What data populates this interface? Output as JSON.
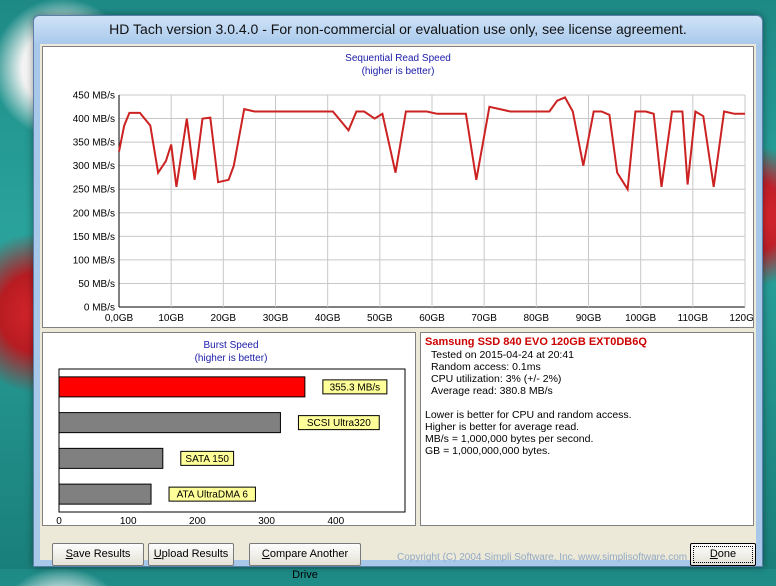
{
  "window": {
    "title": "HD Tach version 3.0.4.0  - For non-commercial or evaluation use only, see license agreement."
  },
  "sequential": {
    "title": "Sequential Read Speed",
    "subtitle": "(higher is better)"
  },
  "burst": {
    "title": "Burst Speed",
    "subtitle": "(higher is better)"
  },
  "chart_data": [
    {
      "type": "line",
      "title": "Sequential Read Speed",
      "subtitle": "(higher is better)",
      "xlabel": "",
      "ylabel": "",
      "x_unit": "GB",
      "y_unit": "MB/s",
      "x_ticks": [
        "0,0GB",
        "10GB",
        "20GB",
        "30GB",
        "40GB",
        "50GB",
        "60GB",
        "70GB",
        "80GB",
        "90GB",
        "100GB",
        "110GB",
        "120GB"
      ],
      "y_ticks": [
        "0 MB/s",
        "50 MB/s",
        "100 MB/s",
        "150 MB/s",
        "200 MB/s",
        "250 MB/s",
        "300 MB/s",
        "350 MB/s",
        "400 MB/s",
        "450 MB/s"
      ],
      "xlim": [
        0,
        120
      ],
      "ylim": [
        0,
        450
      ],
      "grid": true,
      "color": "#cc2222",
      "series": [
        {
          "x": [
            0,
            1,
            2,
            4,
            6,
            7.5,
            9,
            10,
            11,
            13,
            14.5,
            16,
            17.5,
            19,
            21,
            22,
            24,
            26,
            27,
            29,
            31,
            33,
            35,
            37,
            39,
            41,
            42.5,
            44,
            45.5,
            47,
            49,
            50.5,
            53,
            55,
            57,
            59,
            61,
            62.5,
            64.5,
            66.5,
            68.5,
            71,
            73,
            75,
            77,
            79,
            81,
            82.5,
            84,
            85.5,
            87,
            89,
            91,
            92.5,
            94,
            95.5,
            97.5,
            99,
            101,
            102.5,
            104,
            106,
            108,
            109,
            110.5,
            112,
            114,
            116,
            118,
            120
          ],
          "y": [
            330,
            385,
            412,
            412,
            385,
            285,
            310,
            345,
            255,
            400,
            270,
            400,
            402,
            265,
            270,
            300,
            420,
            415,
            415,
            415,
            415,
            415,
            415,
            415,
            415,
            415,
            395,
            375,
            415,
            415,
            400,
            410,
            285,
            415,
            415,
            415,
            410,
            410,
            410,
            410,
            270,
            425,
            420,
            415,
            415,
            415,
            415,
            415,
            438,
            445,
            415,
            300,
            415,
            415,
            408,
            285,
            250,
            415,
            415,
            410,
            255,
            415,
            415,
            260,
            415,
            405,
            255,
            415,
            410,
            410
          ]
        }
      ]
    },
    {
      "type": "bar",
      "orientation": "horizontal",
      "title": "Burst Speed",
      "subtitle": "(higher is better)",
      "xlabel": "",
      "ylabel": "",
      "xlim": [
        0,
        500
      ],
      "x_ticks": [
        "0",
        "100",
        "200",
        "300",
        "400"
      ],
      "grid": false,
      "categories": [
        "355.3 MB/s",
        "SCSI Ultra320",
        "SATA 150",
        "ATA UltraDMA 6"
      ],
      "values": [
        355.3,
        320,
        150,
        133
      ],
      "colors": [
        "#ff0000",
        "#808080",
        "#808080",
        "#808080"
      ]
    }
  ],
  "results": {
    "drive_name": "Samsung SSD 840 EVO 120GB EXT0DB6Q",
    "tested_on": "Tested on 2015-04-24 at 20:41",
    "random_access": "Random access: 0.1ms",
    "cpu_util": "CPU utilization: 3% (+/- 2%)",
    "avg_read": "Average read: 380.8 MB/s",
    "note1": "Lower is better for CPU and random access.",
    "note2": "Higher is better for average read.",
    "note3": "MB/s = 1,000,000 bytes per second.",
    "note4": "GB = 1,000,000,000 bytes."
  },
  "buttons": {
    "save_u": "S",
    "save_rest": "ave Results",
    "upload_u": "U",
    "upload_rest": "pload Results",
    "compare_u": "C",
    "compare_rest": "ompare Another Drive",
    "done_u": "D",
    "done_rest": "one"
  },
  "footer": {
    "copyright": "Copyright (C) 2004 Simpli Software, Inc. www.simplisoftware.com"
  }
}
